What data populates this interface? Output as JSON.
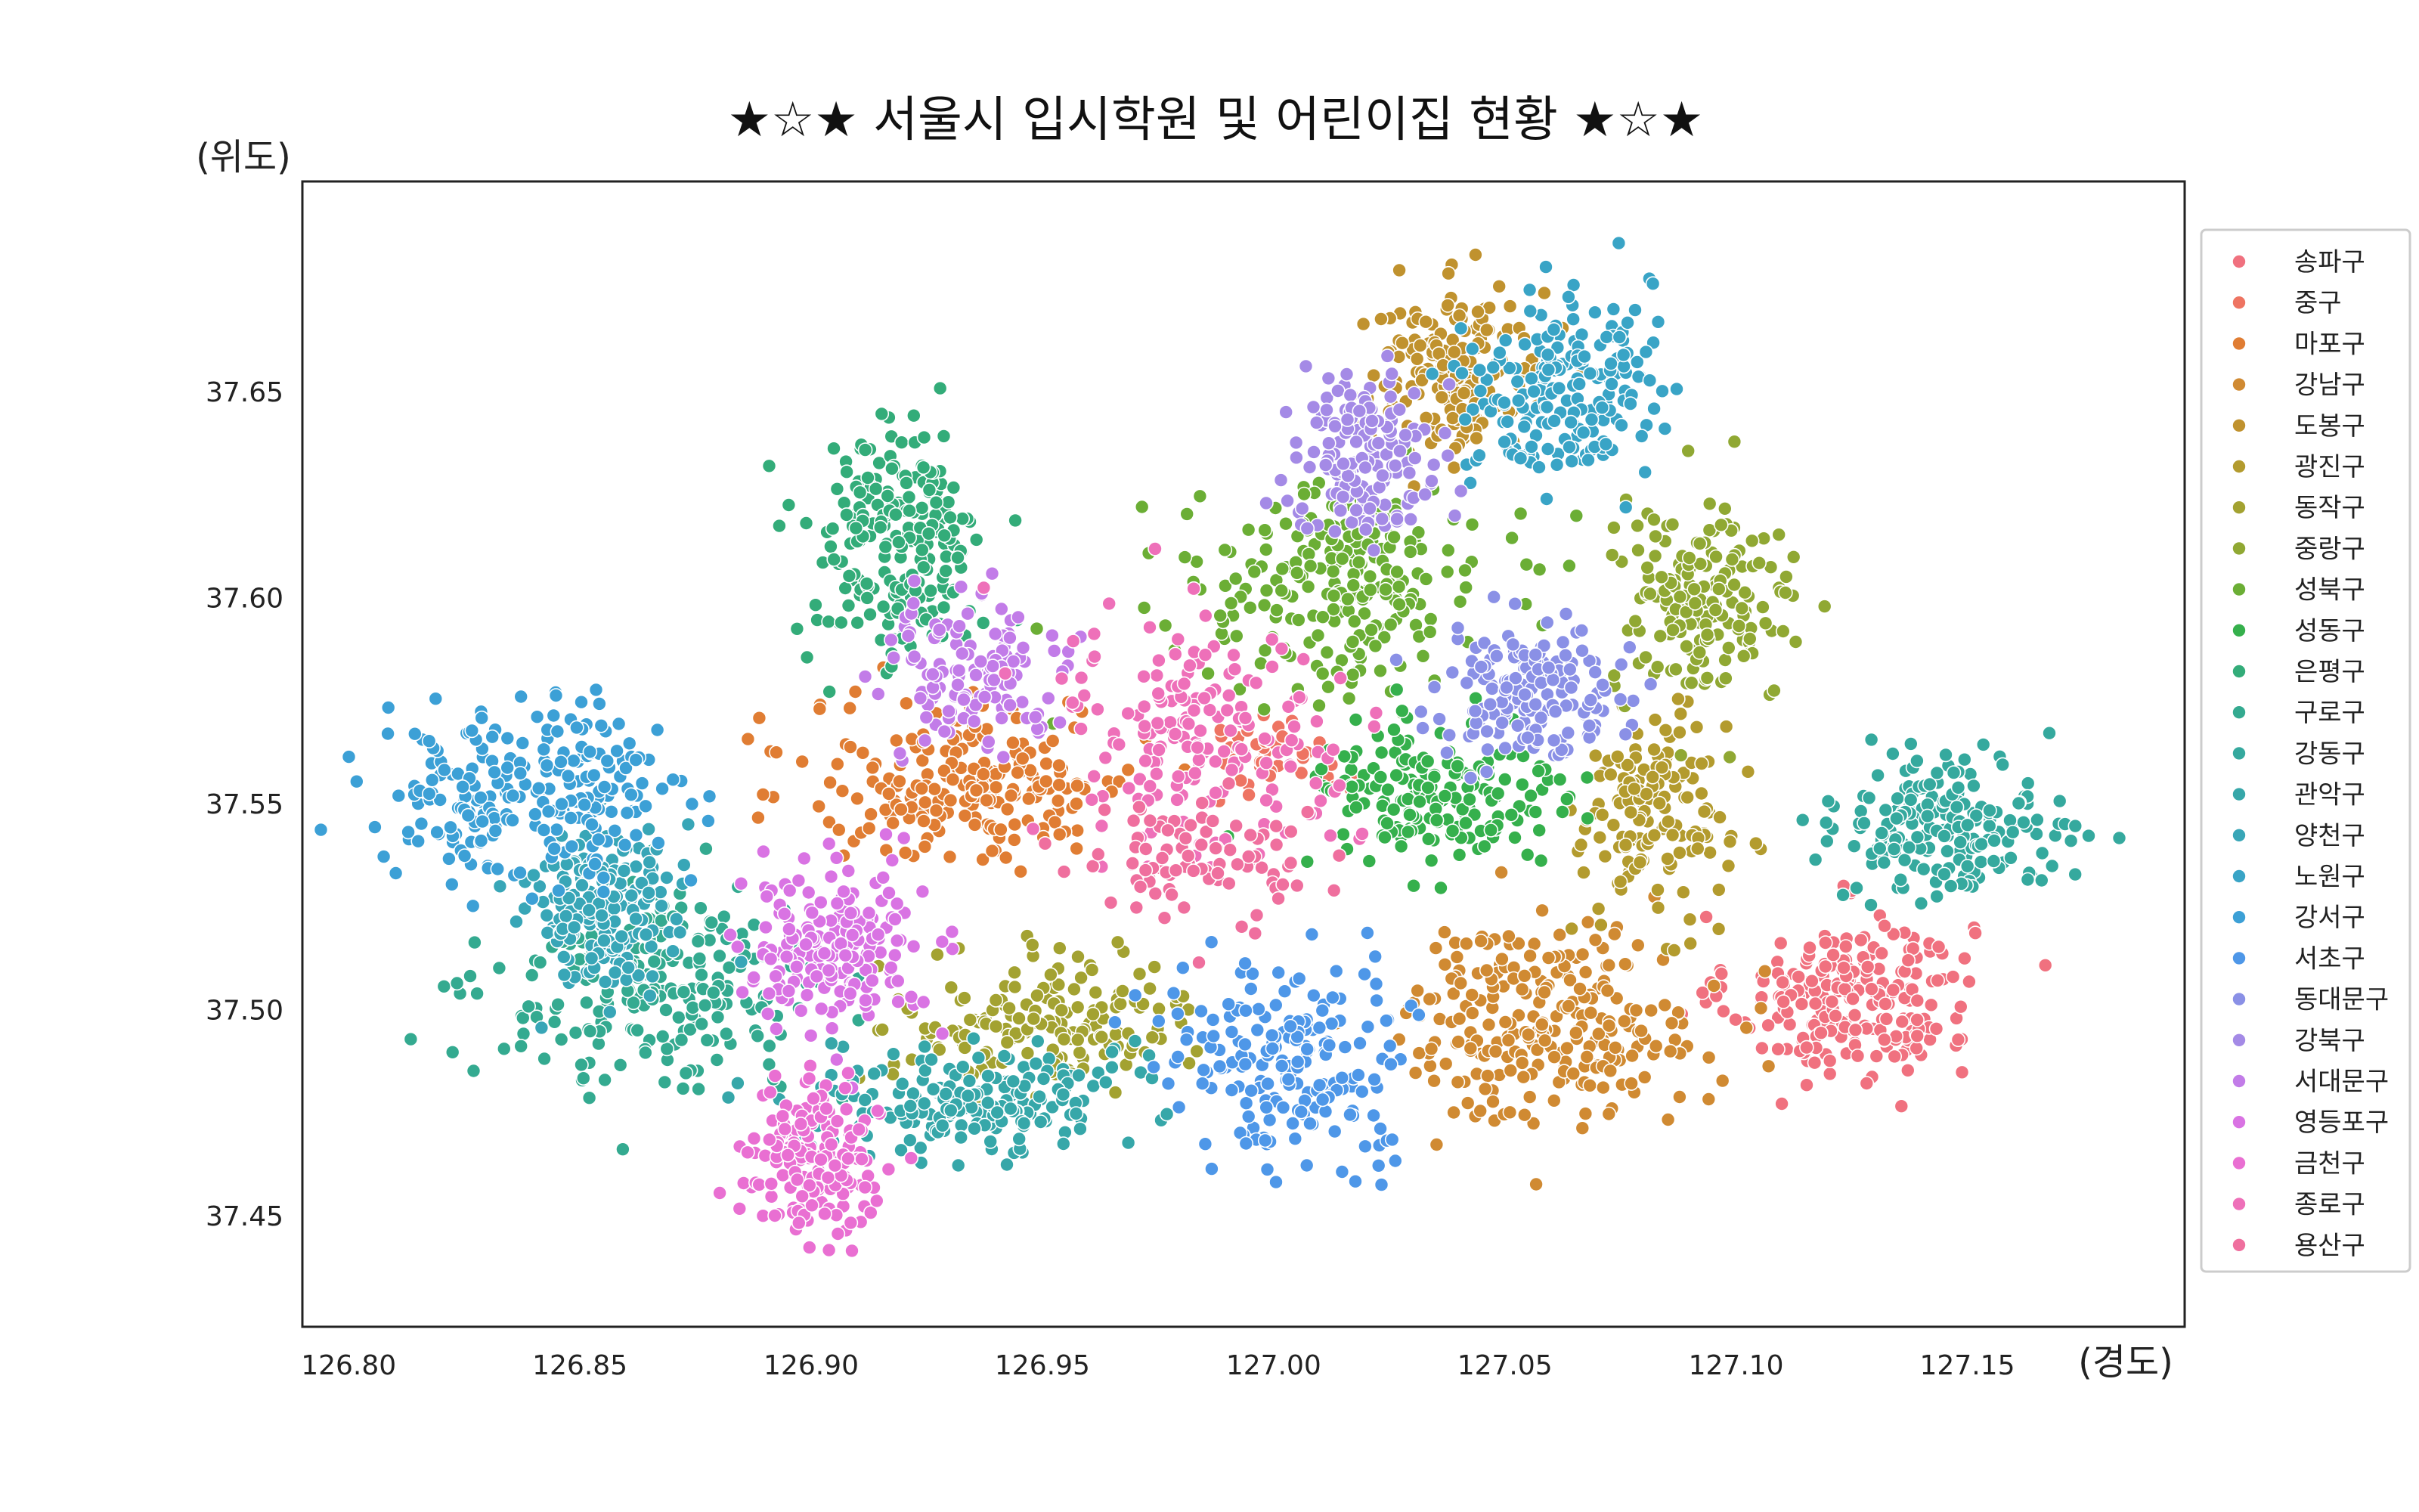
{
  "chart_data": {
    "type": "scatter",
    "title": "★☆★ 서울시 입시학원 및 어린이집 현황 ★☆★",
    "xlabel": "(경도)",
    "ylabel": "(위도)",
    "xlim": [
      126.79,
      127.197
    ],
    "ylim": [
      37.423,
      37.701
    ],
    "x_ticks": [
      "126.80",
      "126.85",
      "126.90",
      "126.95",
      "127.00",
      "127.05",
      "127.10",
      "127.15"
    ],
    "y_ticks": [
      "37.45",
      "37.50",
      "37.55",
      "37.60",
      "37.65"
    ],
    "grid": false,
    "legend_position": "right",
    "series": [
      {
        "name": "송파구",
        "color": "#f0717f",
        "cx": 127.125,
        "cy": 37.503,
        "sx": 0.013,
        "sy": 0.01,
        "n": 240
      },
      {
        "name": "중구",
        "color": "#ee7462",
        "cx": 127.0,
        "cy": 37.562,
        "sx": 0.008,
        "sy": 0.005,
        "n": 40
      },
      {
        "name": "마포구",
        "color": "#e07d33",
        "cx": 126.935,
        "cy": 37.555,
        "sx": 0.018,
        "sy": 0.01,
        "n": 220
      },
      {
        "name": "강남구",
        "color": "#d08a32",
        "cx": 127.06,
        "cy": 37.497,
        "sx": 0.016,
        "sy": 0.012,
        "n": 260
      },
      {
        "name": "도봉구",
        "color": "#c0922e",
        "cx": 127.04,
        "cy": 37.655,
        "sx": 0.01,
        "sy": 0.01,
        "n": 180
      },
      {
        "name": "광진구",
        "color": "#b39b2e",
        "cx": 127.082,
        "cy": 37.547,
        "sx": 0.008,
        "sy": 0.012,
        "n": 150
      },
      {
        "name": "동작구",
        "color": "#a3a231",
        "cx": 126.95,
        "cy": 37.497,
        "sx": 0.016,
        "sy": 0.008,
        "n": 170
      },
      {
        "name": "중랑구",
        "color": "#90a833",
        "cx": 127.093,
        "cy": 37.598,
        "sx": 0.01,
        "sy": 0.012,
        "n": 170
      },
      {
        "name": "성북구",
        "color": "#6bae35",
        "cx": 127.015,
        "cy": 37.603,
        "sx": 0.016,
        "sy": 0.012,
        "n": 240
      },
      {
        "name": "성동구",
        "color": "#35b04c",
        "cx": 127.035,
        "cy": 37.552,
        "sx": 0.014,
        "sy": 0.01,
        "n": 180
      },
      {
        "name": "은평구",
        "color": "#33ac79",
        "cx": 126.918,
        "cy": 37.612,
        "sx": 0.01,
        "sy": 0.015,
        "n": 220
      },
      {
        "name": "구로구",
        "color": "#34aa90",
        "cx": 126.868,
        "cy": 37.505,
        "sx": 0.018,
        "sy": 0.012,
        "n": 230
      },
      {
        "name": "강동구",
        "color": "#35a99e",
        "cx": 127.145,
        "cy": 37.545,
        "sx": 0.012,
        "sy": 0.008,
        "n": 200
      },
      {
        "name": "관악구",
        "color": "#36a7a9",
        "cx": 126.935,
        "cy": 37.478,
        "sx": 0.016,
        "sy": 0.007,
        "n": 200
      },
      {
        "name": "양천구",
        "color": "#38a6b7",
        "cx": 126.855,
        "cy": 37.525,
        "sx": 0.008,
        "sy": 0.01,
        "n": 180
      },
      {
        "name": "노원구",
        "color": "#39a4c6",
        "cx": 127.062,
        "cy": 37.65,
        "sx": 0.01,
        "sy": 0.012,
        "n": 200
      },
      {
        "name": "강서구",
        "color": "#3ca0d6",
        "cx": 126.84,
        "cy": 37.553,
        "sx": 0.016,
        "sy": 0.01,
        "n": 240
      },
      {
        "name": "서초구",
        "color": "#4e97e8",
        "cx": 127.005,
        "cy": 37.487,
        "sx": 0.014,
        "sy": 0.012,
        "n": 200
      },
      {
        "name": "동대문구",
        "color": "#8a90e6",
        "cx": 127.055,
        "cy": 37.578,
        "sx": 0.01,
        "sy": 0.008,
        "n": 170
      },
      {
        "name": "강북구",
        "color": "#a48ae6",
        "cx": 127.02,
        "cy": 37.635,
        "sx": 0.008,
        "sy": 0.01,
        "n": 160
      },
      {
        "name": "서대문구",
        "color": "#c27ce8",
        "cx": 126.935,
        "cy": 37.582,
        "sx": 0.01,
        "sy": 0.008,
        "n": 130
      },
      {
        "name": "영등포구",
        "color": "#d973e3",
        "cx": 126.905,
        "cy": 37.515,
        "sx": 0.01,
        "sy": 0.01,
        "n": 200
      },
      {
        "name": "금천구",
        "color": "#e96fd2",
        "cx": 126.9,
        "cy": 37.463,
        "sx": 0.007,
        "sy": 0.009,
        "n": 170
      },
      {
        "name": "종로구",
        "color": "#ee70b9",
        "cx": 126.985,
        "cy": 37.568,
        "sx": 0.016,
        "sy": 0.014,
        "n": 180
      },
      {
        "name": "용산구",
        "color": "#ef6f9e",
        "cx": 126.985,
        "cy": 37.535,
        "sx": 0.012,
        "sy": 0.008,
        "n": 90
      }
    ]
  }
}
